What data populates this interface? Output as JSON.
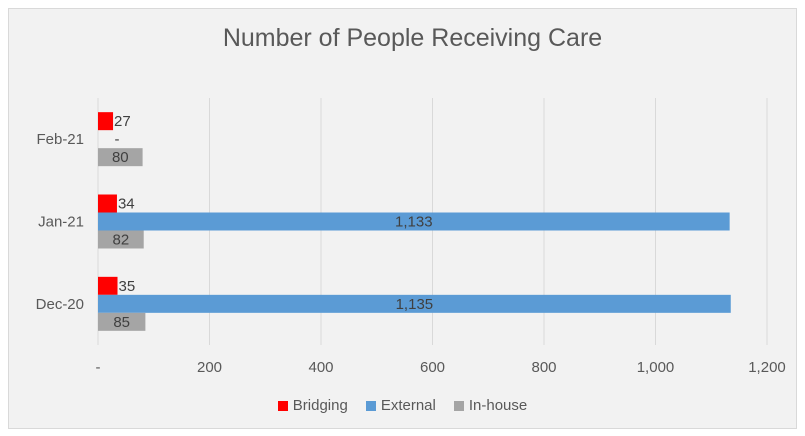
{
  "chart_data": {
    "type": "bar",
    "orientation": "horizontal",
    "title": "Number of People Receiving Care",
    "categories": [
      "Feb-21",
      "Jan-21",
      "Dec-20"
    ],
    "series": [
      {
        "name": "Bridging",
        "color": "#ff0000",
        "values": [
          27,
          34,
          35
        ],
        "labels": [
          "27",
          "34",
          "35"
        ]
      },
      {
        "name": "External",
        "color": "#5b9bd5",
        "values": [
          0,
          1133,
          1135
        ],
        "labels": [
          "-",
          "1,133",
          "1,135"
        ]
      },
      {
        "name": "In-house",
        "color": "#a5a5a5",
        "values": [
          80,
          82,
          85
        ],
        "labels": [
          "80",
          "82",
          "85"
        ]
      }
    ],
    "xlim": [
      0,
      1200
    ],
    "xticks": [
      0,
      200,
      400,
      600,
      800,
      1000,
      1200
    ],
    "xtick_labels": [
      "-",
      "200",
      "400",
      "600",
      "800",
      "1,000",
      "1,200"
    ],
    "grid": true,
    "legend_position": "bottom"
  }
}
